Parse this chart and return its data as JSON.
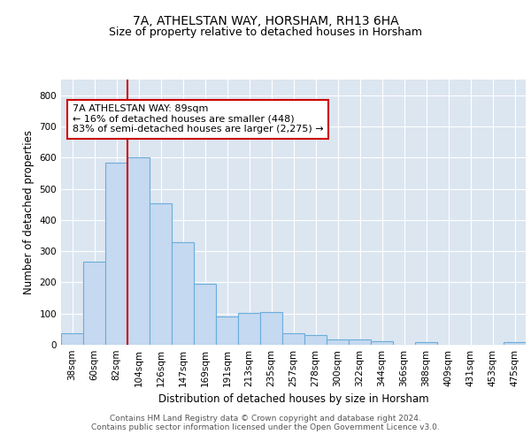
{
  "title_line1": "7A, ATHELSTAN WAY, HORSHAM, RH13 6HA",
  "title_line2": "Size of property relative to detached houses in Horsham",
  "xlabel": "Distribution of detached houses by size in Horsham",
  "ylabel": "Number of detached properties",
  "categories": [
    "38sqm",
    "60sqm",
    "82sqm",
    "104sqm",
    "126sqm",
    "147sqm",
    "169sqm",
    "191sqm",
    "213sqm",
    "235sqm",
    "257sqm",
    "278sqm",
    "300sqm",
    "322sqm",
    "344sqm",
    "366sqm",
    "388sqm",
    "409sqm",
    "431sqm",
    "453sqm",
    "475sqm"
  ],
  "values": [
    37,
    265,
    585,
    600,
    452,
    330,
    196,
    90,
    102,
    105,
    37,
    32,
    18,
    17,
    12,
    0,
    8,
    0,
    0,
    0,
    8
  ],
  "bar_color": "#c5d9f0",
  "bar_edge_color": "#6aaddb",
  "bar_edge_width": 0.8,
  "vline_color": "#cc0000",
  "annotation_text": "7A ATHELSTAN WAY: 89sqm\n← 16% of detached houses are smaller (448)\n83% of semi-detached houses are larger (2,275) →",
  "annotation_box_color": "#ffffff",
  "annotation_box_edge": "#cc0000",
  "ylim": [
    0,
    850
  ],
  "yticks": [
    0,
    100,
    200,
    300,
    400,
    500,
    600,
    700,
    800
  ],
  "plot_bg_color": "#dce6f1",
  "footer_line1": "Contains HM Land Registry data © Crown copyright and database right 2024.",
  "footer_line2": "Contains public sector information licensed under the Open Government Licence v3.0.",
  "title_fontsize": 10,
  "subtitle_fontsize": 9,
  "axis_label_fontsize": 8.5,
  "tick_fontsize": 7.5,
  "annotation_fontsize": 8,
  "footer_fontsize": 6.5
}
